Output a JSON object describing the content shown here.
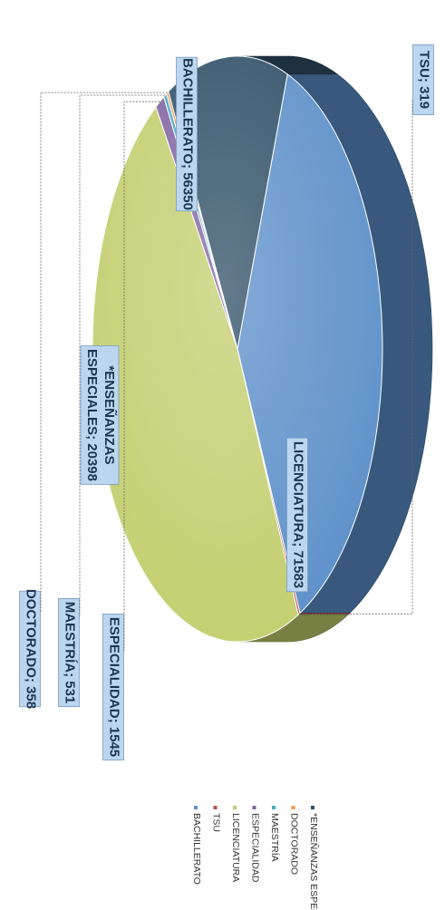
{
  "chart_data": {
    "type": "pie",
    "style": "3d",
    "categories": [
      "BACHILLERATO",
      "TSU",
      "LICENCIATURA",
      "ESPECIALIDAD",
      "MAESTRÍA",
      "DOCTORADO",
      "*ENSEÑANZAS ESPECIALES"
    ],
    "values": [
      56350,
      319,
      71583,
      1545,
      531,
      358,
      20398
    ],
    "data_labels": [
      "BACHILLERATO; 56350",
      "TSU; 319",
      "LICENCIATURA; 71583",
      "ESPECIALIDAD; 1545",
      "MAESTRÍA; 531",
      "DOCTORADO; 358",
      "*ENSEÑANZAS ESPECIALES; 20398"
    ],
    "label_lines": {
      "enseñanzas": [
        "*ENSEÑANZAS",
        "ESPECIALES; 20398"
      ]
    },
    "legend_position": "bottom",
    "colors": {
      "BACHILLERATO": "#5b8fc9",
      "TSU": "#c0504d",
      "LICENCIATURA": "#c3ce6e",
      "ESPECIALIDAD": "#8064a2",
      "MAESTRÍA": "#4bacc6",
      "DOCTORADO": "#f79646",
      "*ENSEÑANZAS ESPECIALES": "#2f4f66"
    },
    "label_box_color": "#bcd6ef"
  }
}
